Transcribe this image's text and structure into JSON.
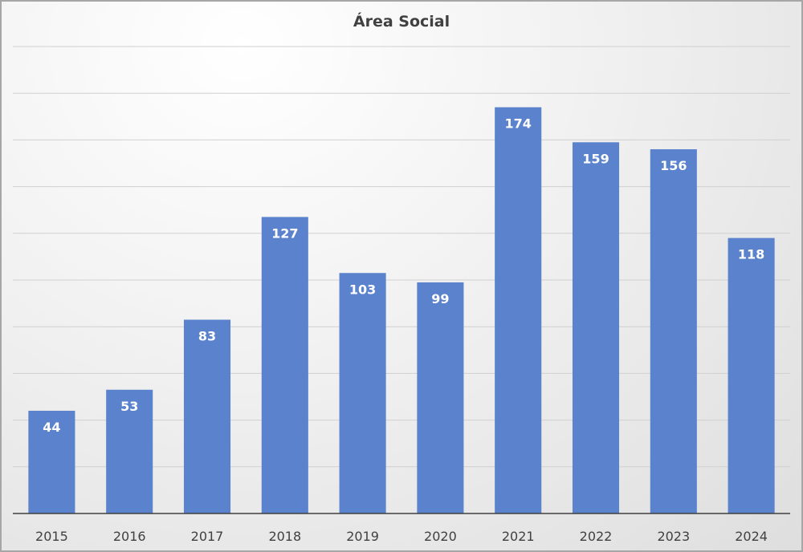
{
  "chart_data": {
    "type": "bar",
    "title": "Área Social",
    "xlabel": "",
    "ylabel": "",
    "categories": [
      "2015",
      "2016",
      "2017",
      "2018",
      "2019",
      "2020",
      "2021",
      "2022",
      "2023",
      "2024"
    ],
    "values": [
      44,
      53,
      83,
      127,
      103,
      99,
      174,
      159,
      156,
      118
    ],
    "ylim": [
      0,
      200
    ],
    "gridline_step": 20,
    "grid": true,
    "legend": "none",
    "bar_color": "#5b82cc",
    "data_label_color": "#ffffff",
    "data_labels": "inside-end"
  }
}
